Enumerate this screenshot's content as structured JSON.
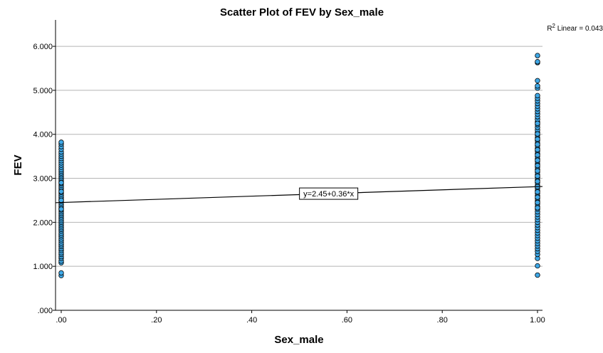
{
  "chart_data": {
    "type": "scatter",
    "title": "Scatter Plot of FEV by Sex_male",
    "xlabel": "Sex_male",
    "ylabel": "FEV",
    "xlim": [
      0.0,
      1.0
    ],
    "ylim": [
      0.0,
      6.0
    ],
    "x_ticks": [
      ".00",
      ".20",
      ".40",
      ".60",
      ".80",
      "1.00"
    ],
    "y_ticks": [
      ".000",
      "1.000",
      "2.000",
      "3.000",
      "4.000",
      "5.000",
      "6.000"
    ],
    "x_tick_values": [
      0.0,
      0.2,
      0.4,
      0.6,
      0.8,
      1.0
    ],
    "y_tick_values": [
      0,
      1,
      2,
      3,
      4,
      5,
      6
    ],
    "grid": "horizontal",
    "marker_color": "#3fa9e8",
    "marker_edge": "#000000",
    "series": [
      {
        "x": [
          0,
          0,
          0,
          0,
          0,
          0,
          0,
          0,
          0,
          0,
          0,
          0,
          0,
          0,
          0,
          0,
          0,
          0,
          0,
          0,
          0,
          0,
          0,
          0,
          0,
          0,
          0,
          0,
          0,
          0,
          0,
          0,
          0,
          0,
          0,
          0,
          0,
          0,
          0,
          0,
          0,
          0,
          0,
          0,
          0,
          0,
          0,
          0,
          0,
          0,
          0,
          0,
          0,
          0,
          0,
          0,
          0,
          0,
          0,
          0,
          0,
          0,
          0,
          0,
          0,
          0,
          0,
          0,
          0,
          0
        ],
        "y": [
          0.79,
          0.85,
          1.08,
          1.12,
          1.18,
          1.22,
          1.27,
          1.31,
          1.36,
          1.4,
          1.45,
          1.49,
          1.53,
          1.58,
          1.62,
          1.67,
          1.71,
          1.75,
          1.8,
          1.84,
          1.88,
          1.92,
          1.96,
          2.0,
          2.04,
          2.08,
          2.12,
          2.16,
          2.2,
          2.24,
          2.28,
          2.32,
          2.36,
          2.4,
          2.44,
          2.48,
          2.52,
          2.56,
          2.6,
          2.64,
          2.68,
          2.72,
          2.76,
          2.8,
          2.84,
          2.88,
          2.92,
          2.96,
          3.0,
          3.04,
          3.08,
          3.12,
          3.16,
          3.2,
          3.25,
          3.3,
          3.35,
          3.4,
          3.45,
          3.5,
          3.55,
          3.6,
          3.66,
          3.72,
          3.78,
          3.82,
          2.3,
          2.5,
          2.7,
          2.9
        ]
      },
      {
        "x": [
          1,
          1,
          1,
          1,
          1,
          1,
          1,
          1,
          1,
          1,
          1,
          1,
          1,
          1,
          1,
          1,
          1,
          1,
          1,
          1,
          1,
          1,
          1,
          1,
          1,
          1,
          1,
          1,
          1,
          1,
          1,
          1,
          1,
          1,
          1,
          1,
          1,
          1,
          1,
          1,
          1,
          1,
          1,
          1,
          1,
          1,
          1,
          1,
          1,
          1,
          1,
          1,
          1,
          1,
          1,
          1,
          1,
          1,
          1,
          1,
          1,
          1,
          1,
          1,
          1,
          1,
          1,
          1,
          1,
          1,
          1,
          1,
          1,
          1,
          1,
          1,
          1,
          1,
          1,
          1,
          1,
          1,
          1,
          1,
          1,
          1
        ],
        "y": [
          0.8,
          1.01,
          1.18,
          1.27,
          1.34,
          1.4,
          1.46,
          1.52,
          1.58,
          1.64,
          1.7,
          1.76,
          1.82,
          1.88,
          1.94,
          2.0,
          2.06,
          2.12,
          2.18,
          2.24,
          2.3,
          2.36,
          2.42,
          2.48,
          2.54,
          2.6,
          2.66,
          2.72,
          2.78,
          2.84,
          2.9,
          2.96,
          3.02,
          3.08,
          3.14,
          3.2,
          3.26,
          3.32,
          3.38,
          3.44,
          3.5,
          3.56,
          3.62,
          3.68,
          3.74,
          3.8,
          3.86,
          3.92,
          3.98,
          4.04,
          4.1,
          4.16,
          4.22,
          4.28,
          4.34,
          4.4,
          4.46,
          4.52,
          4.58,
          4.64,
          4.7,
          4.76,
          4.82,
          4.88,
          5.05,
          5.1,
          5.22,
          5.63,
          5.65,
          5.79,
          2.33,
          2.57,
          2.81,
          3.05,
          3.29,
          3.53,
          3.77,
          4.01,
          4.25,
          2.45,
          2.69,
          2.93,
          3.17,
          3.41,
          3.65,
          3.89
        ]
      }
    ],
    "fit_line": {
      "intercept": 2.45,
      "slope": 0.36,
      "label": "y=2.45+0.36*x"
    },
    "r2": {
      "prefix": "R",
      "sup": "2",
      "text": " Linear = 0.043"
    }
  }
}
